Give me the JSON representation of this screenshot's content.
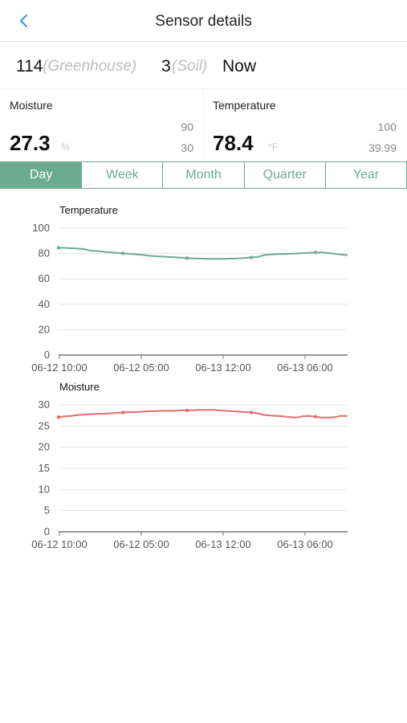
{
  "header": {
    "title": "Sensor details",
    "back_icon": "chevron-left-icon"
  },
  "sensor": {
    "station_id": "114",
    "station_type": "(Greenhouse)",
    "sensor_id": "3",
    "sensor_type": "(Soil)",
    "time": "Now"
  },
  "readings": [
    {
      "name": "Moisture",
      "value": "27.3",
      "unit": "%",
      "max": "90",
      "min": "30"
    },
    {
      "name": "Temperature",
      "value": "78.4",
      "unit": "°F",
      "max": "100",
      "min": "39.99"
    }
  ],
  "tabs": [
    {
      "label": "Day",
      "active": true
    },
    {
      "label": "Week",
      "active": false
    },
    {
      "label": "Month",
      "active": false
    },
    {
      "label": "Quarter",
      "active": false
    },
    {
      "label": "Year",
      "active": false
    }
  ],
  "colors": {
    "accent": "#6aab92",
    "temperature_line": "#6fa894",
    "moisture_line": "#e06d6d"
  },
  "chart_data": [
    {
      "type": "line",
      "title": "Temperature",
      "ylim": [
        0,
        100
      ],
      "yticks": [
        "0",
        "20",
        "40",
        "60",
        "80",
        "100"
      ],
      "xticks": [
        "06-12 10:00",
        "06-12 05:00",
        "06-13 12:00",
        "06-13 06:00"
      ],
      "grid": true,
      "series": [
        {
          "values": [
            84.5,
            84.5,
            84.2,
            83.9,
            83.5,
            82.2,
            82,
            81.4,
            81,
            80.6,
            80.2,
            79.7,
            79.4,
            79,
            78.3,
            77.9,
            77.6,
            77.4,
            77,
            76.8,
            76.4,
            76.2,
            76,
            75.9,
            75.8,
            75.8,
            75.9,
            76,
            76.2,
            76.5,
            76.9,
            77.3,
            78.8,
            79.3,
            79.5,
            79.6,
            79.8,
            80,
            80.3,
            80.6,
            80.9,
            80.8,
            80.4,
            79.8,
            79.2,
            78.7
          ]
        }
      ]
    },
    {
      "type": "line",
      "title": "Moisture",
      "ylim": [
        0,
        30
      ],
      "yticks": [
        "0",
        "5",
        "10",
        "15",
        "20",
        "25",
        "30"
      ],
      "xticks": [
        "06-12 10:00",
        "06-12 05:00",
        "06-13 12:00",
        "06-13 06:00"
      ],
      "grid": true,
      "series": [
        {
          "values": [
            27.1,
            27.3,
            27.4,
            27.6,
            27.7,
            27.8,
            27.9,
            27.9,
            28,
            28.1,
            28.2,
            28.3,
            28.3,
            28.4,
            28.5,
            28.5,
            28.6,
            28.6,
            28.6,
            28.7,
            28.7,
            28.7,
            28.8,
            28.8,
            28.8,
            28.7,
            28.6,
            28.5,
            28.4,
            28.3,
            28.2,
            28,
            27.6,
            27.5,
            27.4,
            27.3,
            27.1,
            27,
            27.3,
            27.4,
            27.2,
            27,
            27,
            27.1,
            27.4,
            27.4
          ]
        }
      ]
    }
  ]
}
